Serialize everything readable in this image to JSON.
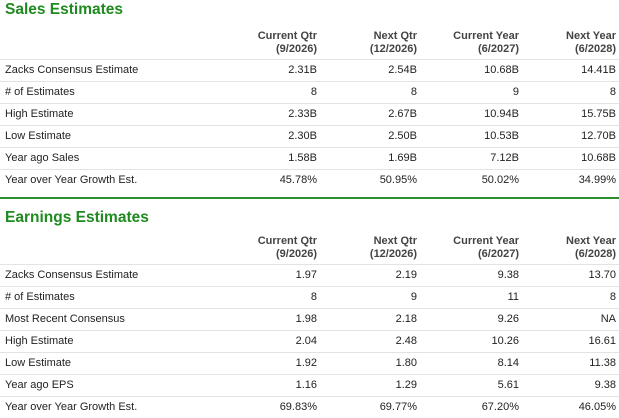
{
  "sales": {
    "title": "Sales Estimates",
    "columns": [
      {
        "name": "Current Qtr",
        "period": "(9/2026)"
      },
      {
        "name": "Next Qtr",
        "period": "(12/2026)"
      },
      {
        "name": "Current Year",
        "period": "(6/2027)"
      },
      {
        "name": "Next Year",
        "period": "(6/2028)"
      }
    ],
    "rows": [
      {
        "label": "Zacks Consensus Estimate",
        "values": [
          "2.31B",
          "2.54B",
          "10.68B",
          "14.41B"
        ]
      },
      {
        "label": "# of Estimates",
        "values": [
          "8",
          "8",
          "9",
          "8"
        ]
      },
      {
        "label": "High Estimate",
        "values": [
          "2.33B",
          "2.67B",
          "10.94B",
          "15.75B"
        ]
      },
      {
        "label": "Low Estimate",
        "values": [
          "2.30B",
          "2.50B",
          "10.53B",
          "12.70B"
        ]
      },
      {
        "label": "Year ago Sales",
        "values": [
          "1.58B",
          "1.69B",
          "7.12B",
          "10.68B"
        ]
      },
      {
        "label": "Year over Year Growth Est.",
        "values": [
          "45.78%",
          "50.95%",
          "50.02%",
          "34.99%"
        ]
      }
    ]
  },
  "earnings": {
    "title": "Earnings Estimates",
    "columns": [
      {
        "name": "Current Qtr",
        "period": "(9/2026)"
      },
      {
        "name": "Next Qtr",
        "period": "(12/2026)"
      },
      {
        "name": "Current Year",
        "period": "(6/2027)"
      },
      {
        "name": "Next Year",
        "period": "(6/2028)"
      }
    ],
    "rows": [
      {
        "label": "Zacks Consensus Estimate",
        "values": [
          "1.97",
          "2.19",
          "9.38",
          "13.70"
        ]
      },
      {
        "label": "# of Estimates",
        "values": [
          "8",
          "9",
          "11",
          "8"
        ]
      },
      {
        "label": "Most Recent Consensus",
        "values": [
          "1.98",
          "2.18",
          "9.26",
          "NA"
        ]
      },
      {
        "label": "High Estimate",
        "values": [
          "2.04",
          "2.48",
          "10.26",
          "16.61"
        ]
      },
      {
        "label": "Low Estimate",
        "values": [
          "1.92",
          "1.80",
          "8.14",
          "11.38"
        ]
      },
      {
        "label": "Year ago EPS",
        "values": [
          "1.16",
          "1.29",
          "5.61",
          "9.38"
        ]
      },
      {
        "label": "Year over Year Growth Est.",
        "values": [
          "69.83%",
          "69.77%",
          "67.20%",
          "46.05%"
        ]
      }
    ]
  },
  "colors": {
    "section_title": "#1f8a1f",
    "divider": "#2e8b2e",
    "row_border": "#e3e3e3"
  }
}
